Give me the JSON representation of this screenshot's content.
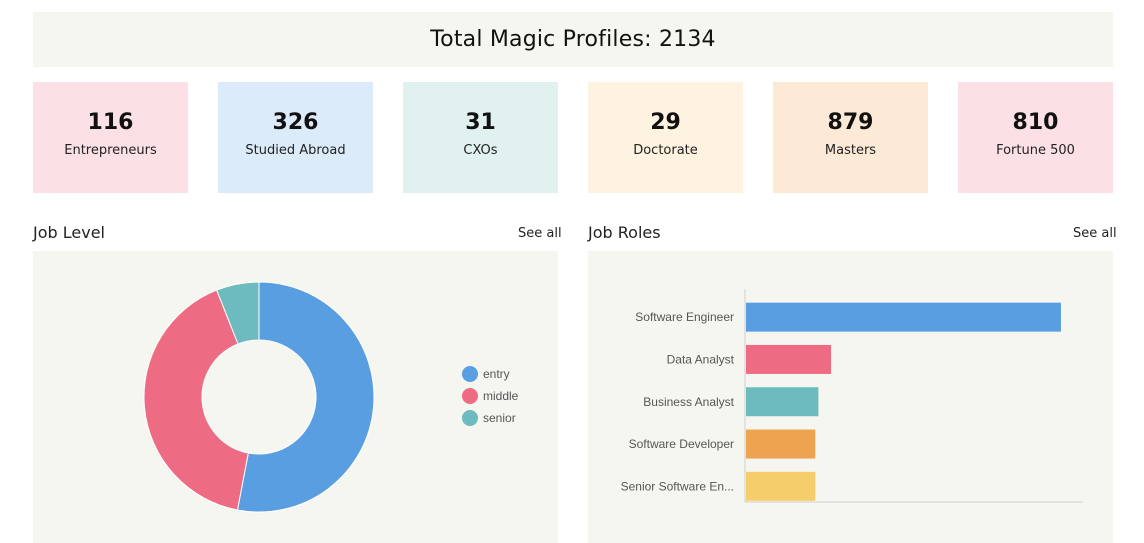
{
  "header": {
    "title": "Total Magic Profiles: 2134"
  },
  "stats": [
    {
      "value": "116",
      "label": "Entrepreneurs",
      "color": "#fbe1e5"
    },
    {
      "value": "326",
      "label": "Studied Abroad",
      "color": "#dcebfa"
    },
    {
      "value": "31",
      "label": "CXOs",
      "color": "#e0f1f0"
    },
    {
      "value": "29",
      "label": "Doctorate",
      "color": "#fdf3e0"
    },
    {
      "value": "879",
      "label": "Masters",
      "color": "#fce9d6"
    },
    {
      "value": "810",
      "label": "Fortune 500",
      "color": "#fbe1e5"
    }
  ],
  "job_level": {
    "title": "Job Level",
    "see_all": "See all"
  },
  "job_roles": {
    "title": "Job Roles",
    "see_all": "See all"
  },
  "chart_data": [
    {
      "type": "pie",
      "variant": "doughnut",
      "categories": [
        "entry",
        "middle",
        "senior"
      ],
      "values": [
        53,
        41,
        6
      ],
      "colors": [
        "#5a9ee2",
        "#ee6c83",
        "#6dbbbf"
      ],
      "legend": "right"
    },
    {
      "type": "bar",
      "orientation": "horizontal",
      "categories": [
        "Software Engineer",
        "Data Analyst",
        "Business Analyst",
        "Software Developer",
        "Senior Software En..."
      ],
      "values": [
        100,
        27,
        23,
        22,
        22
      ],
      "colors": [
        "#5a9ee2",
        "#ee6c83",
        "#6dbbbf",
        "#eea351",
        "#f5cd6b"
      ],
      "xlim": [
        0,
        107
      ]
    }
  ]
}
